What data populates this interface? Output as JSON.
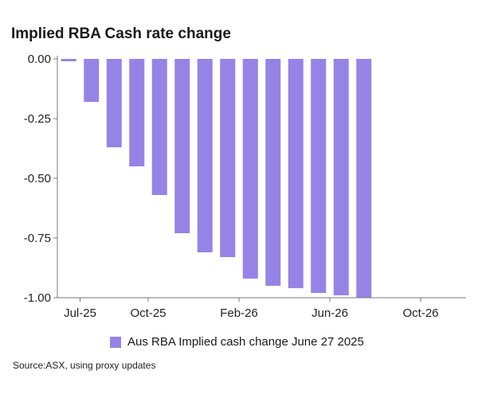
{
  "chart_data": {
    "type": "bar",
    "title": "Implied RBA Cash rate change",
    "xlabel": "",
    "ylabel": "",
    "x_tick_labels": [
      "Jul-25",
      "Oct-25",
      "Feb-26",
      "Jun-26",
      "Oct-26"
    ],
    "x_tick_values": [
      0.5,
      3.5,
      7.5,
      11.5,
      15.5
    ],
    "x_range": [
      -0.5,
      17.5
    ],
    "y_ticks": [
      "0.00",
      "-0.25",
      "-0.50",
      "-0.75",
      "-1.00"
    ],
    "y_tick_values": [
      0,
      -0.25,
      -0.5,
      -0.75,
      -1.0
    ],
    "ylim": [
      -1.0,
      0.0
    ],
    "grid": false,
    "legend_position": "bottom",
    "series": [
      {
        "name": "Aus RBA Implied cash change June 27 2025",
        "color": "#9584e6",
        "x": [
          0,
          1,
          2,
          3,
          4,
          5,
          6,
          7,
          8,
          9,
          10,
          11,
          12,
          13
        ],
        "values": [
          -0.01,
          -0.18,
          -0.37,
          -0.45,
          -0.57,
          -0.73,
          -0.81,
          -0.83,
          -0.92,
          -0.95,
          -0.96,
          -0.98,
          -0.99,
          -1.0
        ]
      }
    ]
  },
  "footer": {
    "source": "Source:ASX, using proxy updates"
  }
}
